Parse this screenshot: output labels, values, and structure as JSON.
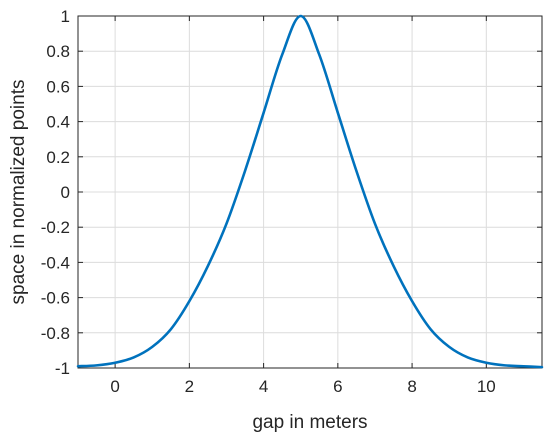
{
  "chart_data": {
    "type": "line",
    "title": "",
    "xlabel": "gap in meters",
    "ylabel": "space in normalized points",
    "xlim": [
      -1,
      11.5
    ],
    "ylim": [
      -1,
      1
    ],
    "xticks": [
      0,
      2,
      4,
      6,
      8,
      10
    ],
    "yticks": [
      -1,
      -0.8,
      -0.6,
      -0.4,
      -0.2,
      0,
      0.2,
      0.4,
      0.6,
      0.8,
      1
    ],
    "xtick_labels": [
      "0",
      "2",
      "4",
      "6",
      "8",
      "10"
    ],
    "ytick_labels": [
      "-1",
      "-0.8",
      "-0.6",
      "-0.4",
      "-0.2",
      "0",
      "0.2",
      "0.4",
      "0.6",
      "0.8",
      "1"
    ],
    "grid": true,
    "series": [
      {
        "color": "#0072bd",
        "x": [
          -1,
          -0.5,
          0,
          0.5,
          1,
          1.5,
          2,
          2.5,
          3,
          3.5,
          4,
          4.5,
          5,
          5.5,
          6,
          6.5,
          7,
          7.5,
          8,
          8.5,
          9,
          9.5,
          10,
          10.5,
          11,
          11.5
        ],
        "y": [
          -0.99,
          -0.985,
          -0.97,
          -0.94,
          -0.88,
          -0.78,
          -0.62,
          -0.42,
          -0.18,
          0.12,
          0.45,
          0.78,
          1.0,
          0.78,
          0.45,
          0.12,
          -0.18,
          -0.42,
          -0.62,
          -0.78,
          -0.88,
          -0.94,
          -0.97,
          -0.985,
          -0.99,
          -0.995
        ]
      }
    ]
  }
}
